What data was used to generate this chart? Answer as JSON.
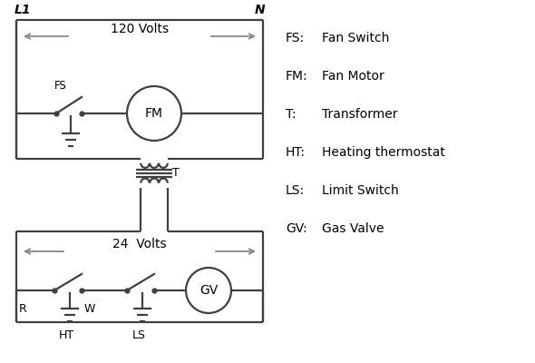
{
  "bg_color": "#ffffff",
  "line_color": "#404040",
  "arrow_color": "#888888",
  "text_color": "#000000",
  "legend_items": [
    [
      "FS:",
      "Fan Switch"
    ],
    [
      "FM:",
      "Fan Motor"
    ],
    [
      "T:",
      "Transformer"
    ],
    [
      "HT:",
      "Heating thermostat"
    ],
    [
      "LS:",
      "Limit Switch"
    ],
    [
      "GV:",
      "Gas Valve"
    ]
  ],
  "figsize": [
    5.9,
    4.0
  ],
  "dpi": 100
}
